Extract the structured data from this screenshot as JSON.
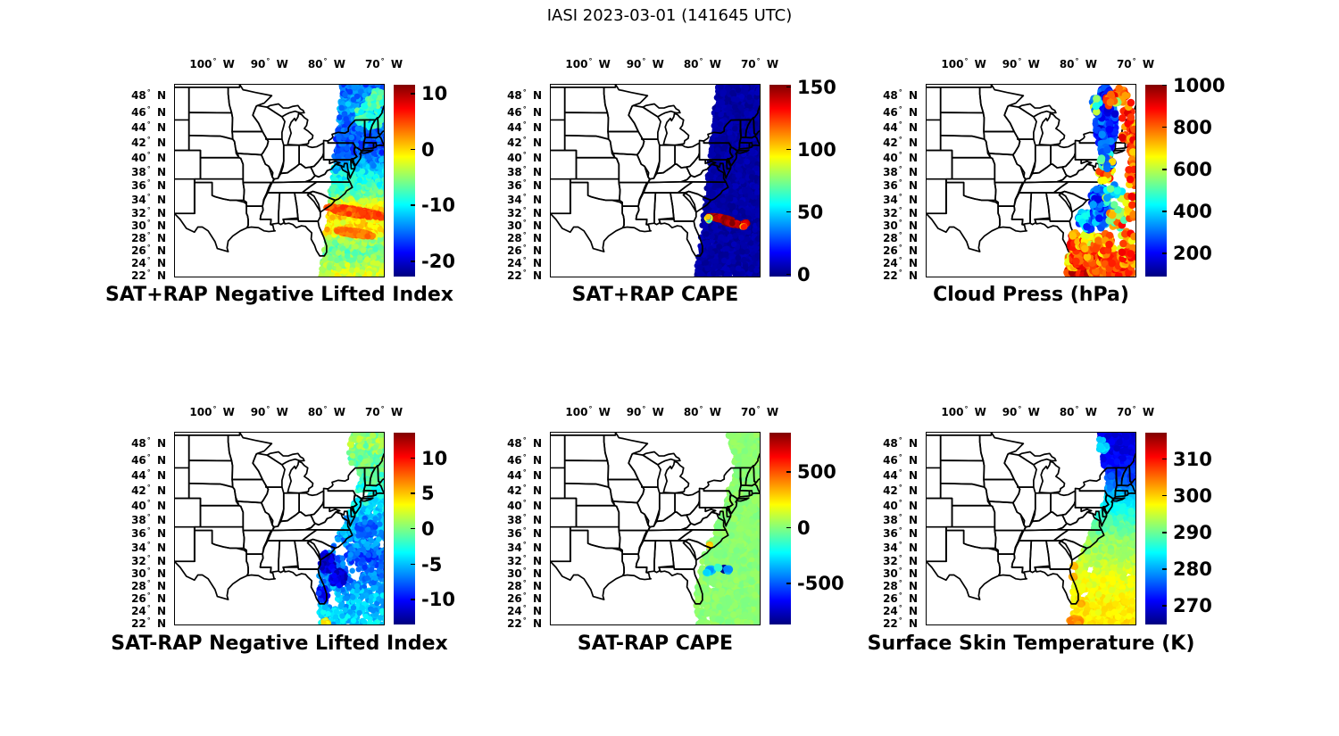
{
  "figure_title": "IASI 2023-03-01 (141645 UTC)",
  "axes": {
    "lon_range": [
      -106.5,
      -70
    ],
    "lat_range": [
      21.8,
      49.3
    ],
    "lon_ticks": [
      -100,
      -90,
      -80,
      -70
    ],
    "lat_ticks": [
      48,
      46,
      44,
      42,
      40,
      38,
      36,
      34,
      32,
      30,
      28,
      26,
      24,
      22
    ],
    "lon_suffix": "W",
    "lat_suffix": "N",
    "degree": "°"
  },
  "colors": {
    "line": "#000000",
    "background": "#ffffff",
    "colormap": "jet"
  },
  "chart_data": [
    {
      "type": "scatter",
      "title": "SAT+RAP Negative Lifted Index",
      "colorbar": {
        "vmin": -22.7,
        "vmax": 11.6,
        "ticks": [
          10,
          0,
          -10,
          -20
        ]
      },
      "dot_r": 3.3,
      "dots_on_top": false,
      "swath": {
        "n_dots": 4200,
        "coverage": 1,
        "noise": 2.2,
        "right_lon": -69.4,
        "left_bound": [
          [
            49.3,
            -77.2
          ],
          [
            21.8,
            -80.9
          ]
        ],
        "lat_profile": [
          [
            49.3,
            -15
          ],
          [
            47,
            -13.5
          ],
          [
            45,
            -14
          ],
          [
            43,
            -15.5
          ],
          [
            41,
            -16
          ],
          [
            39,
            -12.5
          ],
          [
            37.5,
            -9.5
          ],
          [
            36,
            -8
          ],
          [
            34.7,
            -6.5
          ],
          [
            33.4,
            -2
          ],
          [
            32.6,
            -0.5
          ],
          [
            31.6,
            0.5
          ],
          [
            30.4,
            -1
          ],
          [
            29.4,
            0.5
          ],
          [
            28.4,
            -3
          ],
          [
            27,
            -6
          ],
          [
            25.2,
            -6
          ],
          [
            23.6,
            -4
          ],
          [
            21.8,
            -2.2
          ]
        ],
        "holes": []
      },
      "features": [
        [
          -74.9,
          32.1,
          5.3,
          0.5,
          -8,
          260,
          4.6,
          1.6
        ],
        [
          -75.1,
          28.85,
          3.3,
          0.42,
          -8,
          150,
          3.4,
          1.3
        ],
        [
          -72.3,
          45.6,
          2.6,
          1.6,
          0,
          70,
          -8.5,
          2.5
        ],
        [
          -71.2,
          47.6,
          1.6,
          1.1,
          0,
          35,
          -7,
          2
        ]
      ]
    },
    {
      "type": "scatter",
      "title": "SAT+RAP CAPE",
      "colorbar": {
        "vmin": -1.7,
        "vmax": 152,
        "ticks": [
          150,
          100,
          50,
          0
        ]
      },
      "dot_r": 3.3,
      "dots_on_top": false,
      "swath": {
        "n_dots": 4200,
        "coverage": 1,
        "noise": 3.5,
        "clamp_min": 0,
        "right_lon": -69.4,
        "left_bound": [
          [
            49.3,
            -77.2
          ],
          [
            21.8,
            -80.9
          ]
        ],
        "lat_profile": [
          [
            49.3,
            4
          ],
          [
            21.8,
            4
          ]
        ],
        "holes": []
      },
      "features": [
        [
          -76.8,
          31.15,
          2.2,
          0.25,
          -9,
          190,
          146,
          10
        ],
        [
          -74.6,
          30.35,
          1.7,
          0.22,
          -9,
          150,
          147,
          9
        ],
        [
          -78.9,
          31.1,
          0.35,
          0.35,
          0,
          25,
          70,
          35
        ],
        [
          -72.4,
          30.4,
          0.4,
          0.18,
          -9,
          18,
          140,
          15
        ],
        [
          -72.9,
          29.9,
          0.3,
          0.12,
          -9,
          12,
          100,
          30
        ]
      ]
    },
    {
      "type": "scatter",
      "title": "Cloud Press (hPa)",
      "colorbar": {
        "vmin": 91,
        "vmax": 1003,
        "ticks": [
          1000,
          800,
          600,
          400,
          200
        ]
      },
      "dot_r": 4.3,
      "dots_on_top": true,
      "features": [
        [
          -80.3,
          22.6,
          1.7,
          0.8,
          0,
          95,
          860,
          110
        ],
        [
          -78.4,
          22.3,
          1.5,
          0.6,
          0,
          70,
          880,
          90
        ],
        [
          -76.3,
          22.5,
          1.9,
          0.7,
          0,
          55,
          840,
          90
        ],
        [
          -72.8,
          22.4,
          2.4,
          0.7,
          0,
          45,
          850,
          80
        ],
        [
          -81,
          24.4,
          0.9,
          1.2,
          0,
          55,
          690,
          120
        ],
        [
          -79.4,
          24.9,
          1.6,
          1.5,
          0,
          75,
          830,
          100
        ],
        [
          -77,
          25.1,
          1.9,
          1.5,
          0,
          60,
          820,
          110
        ],
        [
          -73.6,
          24.2,
          2.1,
          1.3,
          0,
          45,
          830,
          90
        ],
        [
          -70.9,
          24.6,
          1.4,
          1.6,
          0,
          30,
          800,
          130
        ],
        [
          -80.6,
          27.4,
          0.8,
          1.6,
          0,
          45,
          800,
          110
        ],
        [
          -78.4,
          27.6,
          1.7,
          1.6,
          0,
          45,
          740,
          160
        ],
        [
          -75.4,
          27.1,
          1.7,
          1.7,
          0,
          35,
          770,
          130
        ],
        [
          -71.4,
          27.2,
          1.6,
          1.9,
          0,
          25,
          760,
          160
        ],
        [
          -78.3,
          30.9,
          1.7,
          1.6,
          0,
          60,
          340,
          120
        ],
        [
          -75.9,
          31.6,
          1.6,
          1.9,
          0,
          50,
          300,
          100
        ],
        [
          -73.4,
          31.1,
          1.5,
          1.6,
          0,
          25,
          690,
          220
        ],
        [
          -76.2,
          34.1,
          1.7,
          1.7,
          0,
          50,
          280,
          110
        ],
        [
          -73.7,
          34.6,
          1.6,
          1.6,
          0,
          28,
          460,
          160
        ],
        [
          -70.8,
          33.2,
          0.9,
          2.2,
          0,
          20,
          760,
          150
        ],
        [
          -75.2,
          37.6,
          1.3,
          1.4,
          0,
          22,
          750,
          190
        ],
        [
          -75.2,
          44.8,
          1.7,
          4.3,
          0,
          260,
          250,
          90
        ],
        [
          -75,
          39.8,
          1.2,
          1.3,
          0,
          25,
          350,
          150
        ],
        [
          -72.7,
          48,
          1.5,
          0.9,
          0,
          25,
          830,
          90
        ],
        [
          -71.3,
          44,
          1.2,
          3.5,
          0,
          25,
          820,
          100
        ],
        [
          -73.3,
          47.2,
          0.3,
          0.3,
          0,
          3,
          550,
          60
        ],
        [
          -74.5,
          47.5,
          0.8,
          0.8,
          0,
          8,
          820,
          80
        ],
        [
          -70.4,
          41.8,
          0.7,
          3.2,
          0,
          26,
          810,
          110
        ],
        [
          -70.6,
          36.8,
          0.8,
          2.2,
          0,
          14,
          790,
          140
        ],
        [
          -74.9,
          39.6,
          1.1,
          1.1,
          0,
          12,
          520,
          260
        ],
        [
          -76.8,
          47,
          0.9,
          1,
          0,
          12,
          450,
          180
        ]
      ]
    },
    {
      "type": "scatter",
      "title": "SAT-RAP Negative Lifted Index",
      "colorbar": {
        "vmin": -13.5,
        "vmax": 13.6,
        "ticks": [
          10,
          5,
          0,
          -5,
          -10
        ]
      },
      "dot_r": 3.2,
      "dots_on_top": false,
      "swath": {
        "n_dots": 2100,
        "coverage": 0.78,
        "noise": 1.8,
        "right_lon": -69.4,
        "left_bound": [
          [
            49.3,
            -76
          ],
          [
            46,
            -76
          ],
          [
            44,
            -73.8
          ],
          [
            41.5,
            -74.6
          ],
          [
            39,
            -76
          ],
          [
            36.5,
            -77.5
          ],
          [
            34,
            -79
          ],
          [
            31.5,
            -81
          ],
          [
            28,
            -81.4
          ],
          [
            24,
            -81.3
          ],
          [
            21.8,
            -80.6
          ]
        ],
        "lat_profile": [
          [
            49.3,
            1
          ],
          [
            46.5,
            0
          ],
          [
            44,
            -1
          ],
          [
            42,
            -2.5
          ],
          [
            40,
            -3.5
          ],
          [
            38,
            -5
          ],
          [
            36.5,
            -5.5
          ],
          [
            34.5,
            -6.5
          ],
          [
            32.5,
            -8
          ],
          [
            30,
            -7
          ],
          [
            27.5,
            -5.5
          ],
          [
            25,
            -5
          ],
          [
            23,
            -4.5
          ],
          [
            21.8,
            -4.5
          ]
        ],
        "holes": [
          [
            -77.6,
            33.6,
            1.3,
            1.1
          ],
          [
            -79.2,
            26.2,
            1.1,
            1.3
          ],
          [
            -75.2,
            29.6,
            0.9,
            0.9
          ],
          [
            -73.5,
            41.3,
            1.1,
            0.8
          ]
        ]
      },
      "features": [
        [
          -79.8,
          31.8,
          1.3,
          1.6,
          0,
          70,
          -11.5,
          1.5
        ],
        [
          -78.1,
          29.4,
          1.4,
          1.3,
          0,
          55,
          -11,
          1.5
        ],
        [
          -80.6,
          26.8,
          0.9,
          1.3,
          0,
          30,
          -9.5,
          1.5
        ],
        [
          -80.1,
          22.15,
          0.5,
          0.4,
          0,
          14,
          3.5,
          1.8
        ],
        [
          -73,
          37,
          1.7,
          1.3,
          0,
          40,
          -7.5,
          1.2
        ]
      ]
    },
    {
      "type": "scatter",
      "title": "SAT-RAP CAPE",
      "colorbar": {
        "vmin": -866,
        "vmax": 854,
        "ticks": [
          500,
          0,
          -500
        ]
      },
      "dot_r": 3.8,
      "dots_on_top": false,
      "swath": {
        "n_dots": 3200,
        "coverage": 0.96,
        "noise": 35,
        "right_lon": -69.4,
        "left_bound": [
          [
            49.3,
            -75.2
          ],
          [
            44.5,
            -73.8
          ],
          [
            42,
            -75.2
          ],
          [
            39,
            -76.3
          ],
          [
            36,
            -77.9
          ],
          [
            33,
            -79.4
          ],
          [
            30,
            -80.4
          ],
          [
            26,
            -81
          ],
          [
            21.8,
            -80.4
          ]
        ],
        "lat_profile": [
          [
            49.3,
            15
          ],
          [
            21.8,
            15
          ]
        ],
        "holes": [
          [
            -76.9,
            30.75,
            1.7,
            0.6
          ],
          [
            -78.5,
            27.9,
            0.6,
            0.7
          ],
          [
            -79.8,
            24.6,
            0.6,
            0.6
          ],
          [
            -79,
            22.7,
            0.7,
            0.6
          ],
          [
            -80.2,
            26.5,
            0.5,
            0.8
          ]
        ]
      },
      "features": [
        [
          -76.2,
          30.68,
          0.16,
          0.13,
          0,
          10,
          -840,
          15,
          4.6
        ],
        [
          -78.55,
          30.55,
          0.45,
          0.3,
          0,
          22,
          -350,
          70
        ],
        [
          -75.55,
          30.6,
          0.35,
          0.25,
          0,
          16,
          -370,
          60
        ],
        [
          -79.2,
          30.15,
          0.2,
          0.15,
          0,
          6,
          -250,
          60
        ],
        [
          -77.3,
          30.9,
          0.25,
          0.15,
          0,
          6,
          -150,
          40
        ],
        [
          -78.75,
          34.3,
          0.13,
          0.1,
          0,
          5,
          330,
          50
        ]
      ]
    },
    {
      "type": "scatter",
      "title": "Surface Skin Temperature (K)",
      "colorbar": {
        "vmin": 265,
        "vmax": 317.2,
        "ticks": [
          310,
          300,
          290,
          280,
          270
        ]
      },
      "dot_r": 3.7,
      "dots_on_top": false,
      "swath": {
        "n_dots": 3000,
        "coverage": 0.92,
        "noise": 1.8,
        "right_lon": -69.4,
        "left_bound": [
          [
            49.3,
            -76.2
          ],
          [
            44,
            -75
          ],
          [
            42,
            -74.6
          ],
          [
            40,
            -75.5
          ],
          [
            37,
            -77.3
          ],
          [
            34,
            -78.8
          ],
          [
            31,
            -80.2
          ],
          [
            27,
            -81
          ],
          [
            21.8,
            -80.8
          ]
        ],
        "lat_profile": [
          [
            49.3,
            269.5
          ],
          [
            47.5,
            270
          ],
          [
            45.5,
            272
          ],
          [
            43.5,
            276
          ],
          [
            42,
            280
          ],
          [
            40.5,
            283.5
          ],
          [
            39,
            286.5
          ],
          [
            37,
            289.5
          ],
          [
            35,
            292
          ],
          [
            33,
            293.5
          ],
          [
            31,
            295
          ],
          [
            29,
            296.5
          ],
          [
            27,
            297.5
          ],
          [
            25,
            298
          ],
          [
            23,
            298.5
          ],
          [
            21.8,
            299
          ]
        ],
        "holes": [
          [
            -77.9,
            30.6,
            0.8,
            0.9
          ],
          [
            -79,
            26.6,
            0.7,
            0.8
          ]
        ]
      },
      "features": [
        [
          -80.6,
          22.35,
          1.1,
          0.55,
          0,
          80,
          303,
          1.5
        ],
        [
          -79.4,
          25.3,
          0.3,
          0.3,
          0,
          5,
          302,
          1
        ],
        [
          -80.9,
          29.45,
          0.28,
          0.32,
          0,
          7,
          302,
          1
        ],
        [
          -80.75,
          31.15,
          0.22,
          0.27,
          0,
          6,
          301,
          1
        ],
        [
          -75.7,
          47.9,
          0.8,
          0.9,
          0,
          18,
          282,
          3
        ]
      ]
    }
  ]
}
